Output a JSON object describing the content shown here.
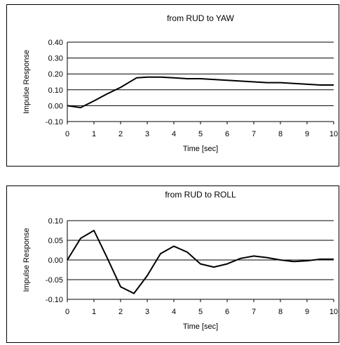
{
  "chart_data": [
    {
      "type": "line",
      "title": "from RUD to YAW",
      "xlabel": "Time [sec]",
      "ylabel": "Impulse Response",
      "xlim": [
        0,
        10
      ],
      "ylim": [
        -0.1,
        0.4
      ],
      "xticks": [
        0,
        1,
        2,
        3,
        4,
        5,
        6,
        7,
        8,
        9,
        10
      ],
      "yticks": [
        "0.40",
        "0.30",
        "0.20",
        "0.10",
        "0.00",
        "-0.10"
      ],
      "yticks_values": [
        0.4,
        0.3,
        0.2,
        0.1,
        0.0,
        -0.1
      ],
      "grid": "horizontal",
      "series": [
        {
          "x": [
            0,
            0.5,
            1,
            1.5,
            2,
            2.6,
            3,
            3.5,
            4,
            4.5,
            5,
            5.5,
            6,
            6.5,
            7,
            7.5,
            8,
            8.5,
            9,
            9.5,
            10
          ],
          "y": [
            0.0,
            -0.012,
            0.03,
            0.075,
            0.115,
            0.175,
            0.18,
            0.18,
            0.175,
            0.17,
            0.17,
            0.165,
            0.16,
            0.155,
            0.15,
            0.145,
            0.145,
            0.14,
            0.135,
            0.13,
            0.13
          ]
        }
      ]
    },
    {
      "type": "line",
      "title": "from RUD to ROLL",
      "xlabel": "Time [sec]",
      "ylabel": "Impulse Response",
      "xlim": [
        0,
        10
      ],
      "ylim": [
        -0.1,
        0.1
      ],
      "xticks": [
        0,
        1,
        2,
        3,
        4,
        5,
        6,
        7,
        8,
        9,
        10
      ],
      "yticks": [
        "0.10",
        "0.05",
        "0.00",
        "-0.05",
        "-0.10"
      ],
      "yticks_values": [
        0.1,
        0.05,
        0.0,
        -0.05,
        -0.1
      ],
      "grid": "horizontal",
      "series": [
        {
          "x": [
            0,
            0.5,
            1,
            1.5,
            2,
            2.5,
            3,
            3.5,
            4,
            4.5,
            5,
            5.5,
            6,
            6.5,
            7,
            7.5,
            8,
            8.5,
            9,
            9.5,
            10
          ],
          "y": [
            0.0,
            0.055,
            0.075,
            0.005,
            -0.068,
            -0.085,
            -0.04,
            0.016,
            0.035,
            0.02,
            -0.01,
            -0.018,
            -0.01,
            0.004,
            0.01,
            0.006,
            0.0,
            -0.004,
            -0.002,
            0.002,
            0.002
          ]
        }
      ]
    }
  ]
}
